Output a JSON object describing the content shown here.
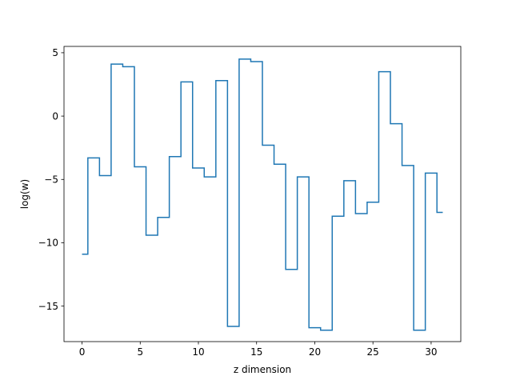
{
  "chart_data": {
    "type": "line",
    "drawstyle": "steps-mid",
    "xlabel": "z dimension",
    "ylabel": "log(w)",
    "xlim": [
      -1.55,
      32.55
    ],
    "ylim": [
      -17.8,
      5.5
    ],
    "xticks": [
      0,
      5,
      10,
      15,
      20,
      25,
      30
    ],
    "yticks": [
      -15,
      -10,
      -5,
      0,
      5
    ],
    "ytick_labels": [
      "−15",
      "−10",
      "−5",
      "0",
      "5"
    ],
    "grid": false,
    "series": [
      {
        "color": "#1f77b4",
        "x": [
          0,
          1,
          2,
          3,
          4,
          5,
          6,
          7,
          8,
          9,
          10,
          11,
          12,
          13,
          14,
          15,
          16,
          17,
          18,
          19,
          20,
          21,
          22,
          23,
          24,
          25,
          26,
          27,
          28,
          29,
          30,
          31
        ],
        "y": [
          -10.9,
          -3.3,
          -4.7,
          4.1,
          3.9,
          -4.0,
          -9.4,
          -8.0,
          -3.2,
          2.7,
          -4.1,
          -4.8,
          2.8,
          -16.6,
          4.5,
          4.3,
          -2.3,
          -3.8,
          -12.1,
          -4.8,
          -16.7,
          -16.9,
          -7.9,
          -5.1,
          -7.7,
          -6.8,
          3.5,
          -0.6,
          -3.9,
          -16.9,
          -4.5,
          -7.6
        ]
      }
    ]
  }
}
